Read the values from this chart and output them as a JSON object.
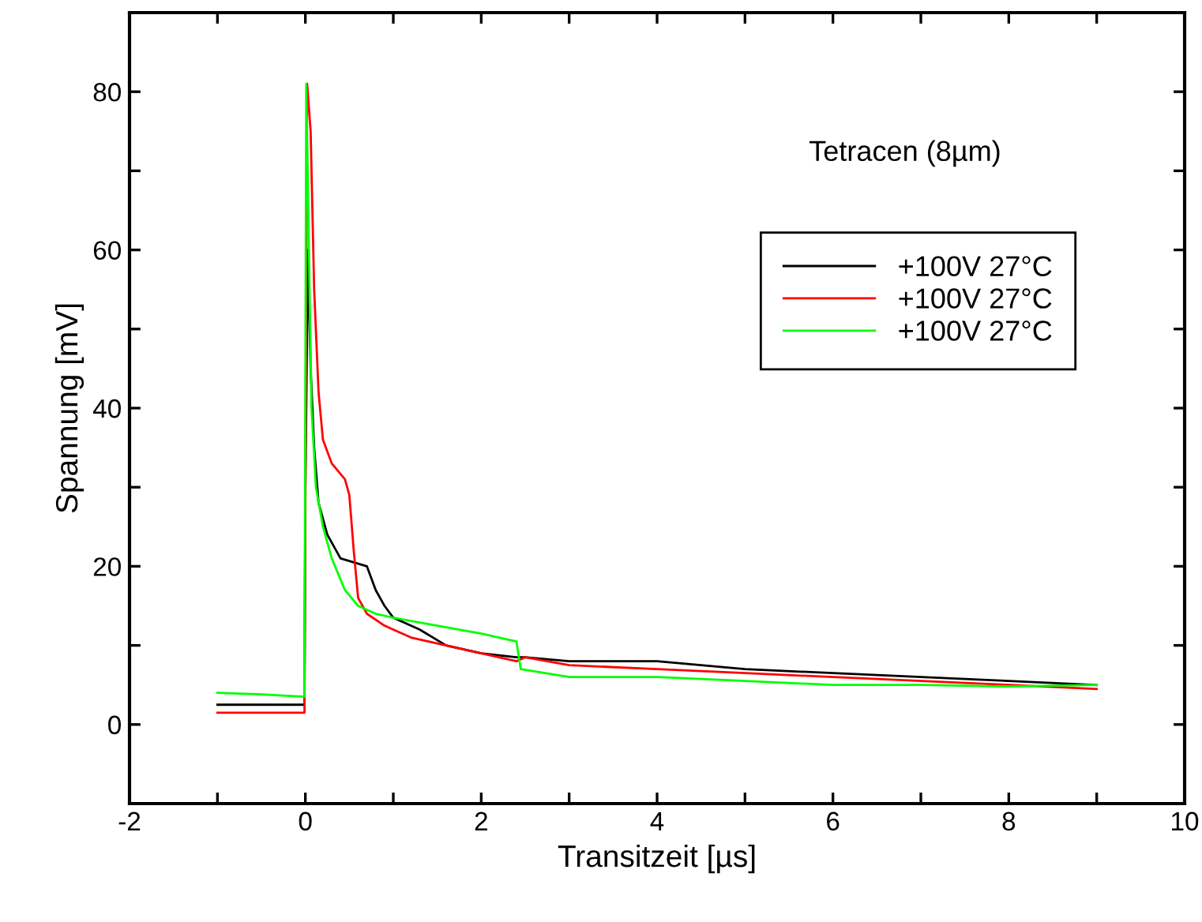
{
  "chart_data": {
    "type": "line",
    "xlabel": "Transitzeit [µs]",
    "ylabel": "Spannung [mV]",
    "annotations": [
      "Tetracen (8µm)"
    ],
    "xlim": [
      -2,
      10
    ],
    "xticks": [
      -2,
      {
        "value": -1,
        "label": null
      },
      0,
      {
        "value": 1,
        "label": null
      },
      2,
      {
        "value": 3,
        "label": null
      },
      4,
      {
        "value": 5,
        "label": null
      },
      6,
      {
        "value": 7,
        "label": null
      },
      8,
      {
        "value": 9,
        "label": null
      },
      10
    ],
    "ylim": [
      -10,
      90
    ],
    "yticks": [
      {
        "value": -10,
        "label": null
      },
      0,
      {
        "value": 10,
        "label": null
      },
      20,
      {
        "value": 30,
        "label": null
      },
      40,
      {
        "value": 50,
        "label": null
      },
      60,
      {
        "value": 70,
        "label": null
      },
      80,
      {
        "value": 90,
        "label": null
      }
    ],
    "grid": false,
    "legend": "top right",
    "marker": "none",
    "line_style": "solid",
    "series": [
      {
        "name": "+100V 27°C",
        "color": "#000000",
        "x": [
          -1,
          -0.5,
          -0.01,
          0.0,
          0.03,
          0.06,
          0.1,
          0.15,
          0.25,
          0.4,
          0.55,
          0.7,
          0.8,
          0.9,
          1.0,
          1.3,
          1.6,
          2.0,
          2.4,
          2.5,
          3,
          4,
          5,
          6,
          7,
          8,
          9
        ],
        "values": [
          2.5,
          2.5,
          2.5,
          30,
          60,
          45,
          35,
          28,
          24,
          21,
          20.5,
          20,
          17,
          15,
          13.5,
          12,
          10,
          9,
          8.5,
          8.5,
          8,
          8,
          7,
          6.5,
          6,
          5.5,
          5
        ]
      },
      {
        "name": "+100V 27°C",
        "color": "#ff0000",
        "x": [
          -1,
          -0.5,
          -0.01,
          0.02,
          0.06,
          0.1,
          0.15,
          0.2,
          0.3,
          0.45,
          0.5,
          0.55,
          0.6,
          0.7,
          0.9,
          1.2,
          1.6,
          2.0,
          2.4,
          2.5,
          3,
          4,
          5,
          6,
          7,
          8,
          9
        ],
        "values": [
          1.5,
          1.5,
          1.5,
          81,
          75,
          55,
          42,
          36,
          33,
          31,
          29,
          22,
          16,
          14,
          12.5,
          11,
          10,
          9,
          8,
          8.5,
          7.5,
          7,
          6.5,
          6,
          5.5,
          5,
          4.5
        ]
      },
      {
        "name": "+100V 27°C",
        "color": "#00ff00",
        "x": [
          -1,
          -0.5,
          -0.01,
          0.01,
          0.04,
          0.07,
          0.12,
          0.2,
          0.3,
          0.45,
          0.6,
          0.8,
          1.0,
          1.5,
          2.0,
          2.4,
          2.45,
          3,
          4,
          5,
          6,
          7,
          8,
          9
        ],
        "values": [
          4,
          3.8,
          3.5,
          81,
          60,
          40,
          30,
          25,
          21,
          17,
          15,
          14,
          13.5,
          12.5,
          11.5,
          10.5,
          7,
          6,
          6,
          5.5,
          5,
          5,
          4.8,
          5
        ]
      }
    ]
  }
}
